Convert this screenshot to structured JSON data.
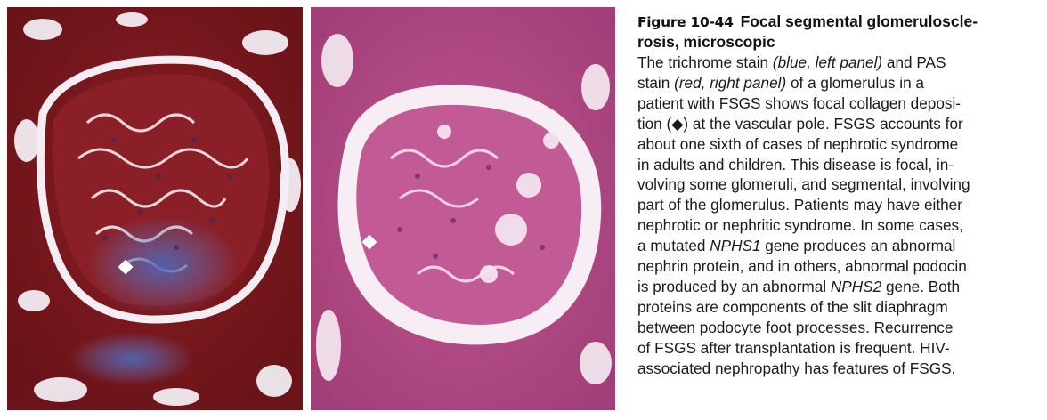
{
  "figure": {
    "number": "Figure 10-44",
    "title_line1": "Focal segmental glomeruloscle-",
    "title_line2": "rosis, microscopic"
  },
  "caption_lines": [
    [
      {
        "t": "The trichrome stain "
      },
      {
        "t": "(blue,  left  panel)",
        "i": true
      },
      {
        "t": " and PAS"
      }
    ],
    [
      {
        "t": "stain "
      },
      {
        "t": "(red,  right  panel)",
        "i": true
      },
      {
        "t": " of a glomerulus in a"
      }
    ],
    [
      {
        "t": "patient with FSGS shows focal collagen deposi-"
      }
    ],
    [
      {
        "t": "tion (◆) at the vascular pole. FSGS accounts for"
      }
    ],
    [
      {
        "t": "about one sixth of cases of nephrotic syndrome"
      }
    ],
    [
      {
        "t": "in adults and children. This disease is focal, in-"
      }
    ],
    [
      {
        "t": "volving some glomeruli, and segmental, involving"
      }
    ],
    [
      {
        "t": "part of the glomerulus. Patients may have either"
      }
    ],
    [
      {
        "t": "nephrotic or nephritic syndrome. In some cases,"
      }
    ],
    [
      {
        "t": "a mutated "
      },
      {
        "t": "NPHS1",
        "i": true
      },
      {
        "t": " gene produces an abnormal"
      }
    ],
    [
      {
        "t": "nephrin protein, and in others, abnormal podocin"
      }
    ],
    [
      {
        "t": "is produced by an abnormal "
      },
      {
        "t": "NPHS2",
        "i": true
      },
      {
        "t": " gene. Both"
      }
    ],
    [
      {
        "t": "proteins are components of the slit diaphragm"
      }
    ],
    [
      {
        "t": "between podocyte foot processes. Recurrence"
      }
    ],
    [
      {
        "t": "of FSGS after transplantation is frequent. HIV-"
      }
    ],
    [
      {
        "t": "associated nephropathy has features of FSGS."
      }
    ]
  ],
  "images": {
    "left_panel": {
      "stain": "trichrome",
      "palette": [
        "#7d1a20",
        "#a9242c",
        "#c8bcc8",
        "#5b6fb0",
        "#f3eef4"
      ]
    },
    "right_panel": {
      "stain": "PAS",
      "palette": [
        "#b24a86",
        "#cf6fa5",
        "#e9b9d4",
        "#8c2f6b",
        "#f6eef3"
      ]
    }
  },
  "icons": {
    "marker": "white-diamond-marker-icon"
  }
}
